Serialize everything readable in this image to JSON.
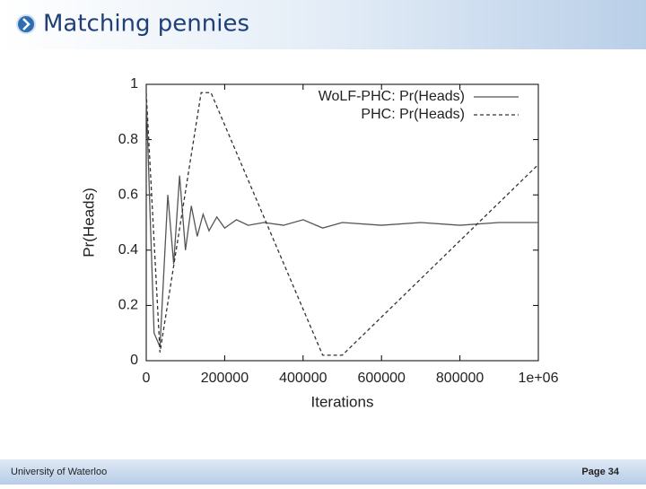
{
  "slide": {
    "title": "Matching pennies",
    "footer_left": "University of Waterloo",
    "footer_right": "Page 34"
  },
  "chart_data": {
    "type": "line",
    "x_label": "Iterations",
    "y_label": "Pr(Heads)",
    "xlim": [
      0,
      1000000
    ],
    "ylim": [
      0,
      1
    ],
    "xticks": [
      0,
      200000,
      400000,
      600000,
      800000,
      {
        "value": 1000000,
        "label": "1e+06"
      }
    ],
    "yticks": [
      0,
      0.2,
      0.4,
      0.6,
      0.8,
      1
    ],
    "legend": "upper right",
    "series": [
      {
        "name": "WoLF-PHC: Pr(Heads)",
        "color": "#555555",
        "style": "solid",
        "x": [
          0,
          20000,
          35000,
          55000,
          70000,
          85000,
          100000,
          115000,
          130000,
          145000,
          160000,
          180000,
          200000,
          230000,
          260000,
          300000,
          350000,
          400000,
          450000,
          500000,
          600000,
          700000,
          800000,
          900000,
          1000000
        ],
        "values": [
          0.95,
          0.1,
          0.05,
          0.6,
          0.35,
          0.67,
          0.4,
          0.56,
          0.45,
          0.53,
          0.47,
          0.52,
          0.48,
          0.51,
          0.49,
          0.5,
          0.49,
          0.51,
          0.48,
          0.5,
          0.49,
          0.5,
          0.49,
          0.5,
          0.5
        ]
      },
      {
        "name": "PHC: Pr(Heads)",
        "color": "#333333",
        "style": "dashed",
        "x": [
          0,
          10000,
          35000,
          140000,
          165000,
          450000,
          500000,
          1000000
        ],
        "values": [
          0.97,
          0.7,
          0.03,
          0.97,
          0.97,
          0.02,
          0.02,
          0.71
        ]
      }
    ]
  }
}
